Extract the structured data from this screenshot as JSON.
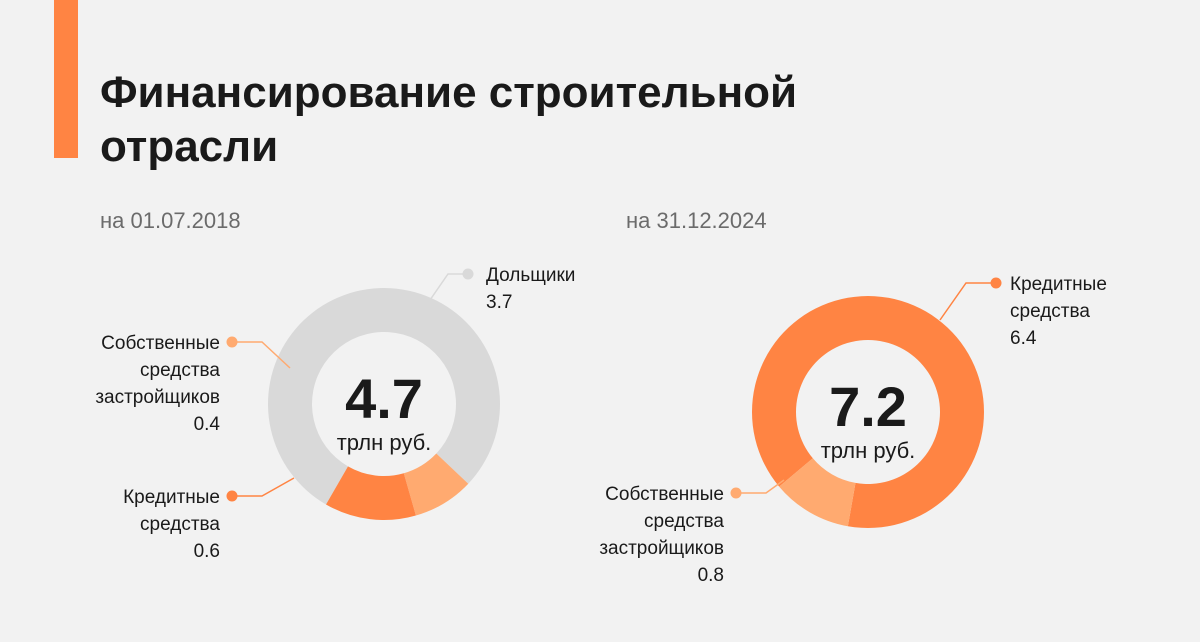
{
  "title": "Финансирование строительной отрасли",
  "title_lines": [
    "Финансирование строительной",
    "отрасли"
  ],
  "colors": {
    "accent": "#ff8443",
    "credit": "#ff8443",
    "own_funds": "#ffaa70",
    "shareholders": "#d9d9d9"
  },
  "chart_data": [
    {
      "type": "pie",
      "subtitle": "на 01.07.2018",
      "total": "4.7",
      "unit": "трлн руб.",
      "slices": [
        {
          "name": "Дольщики",
          "lines": [
            "Дольщики"
          ],
          "value": 3.7,
          "color": "#d9d9d9"
        },
        {
          "name": "Собственные средства застройщиков",
          "lines": [
            "Собственные",
            "средства",
            "застройщиков"
          ],
          "value": 0.4,
          "color": "#ffaa70"
        },
        {
          "name": "Кредитные средства",
          "lines": [
            "Кредитные",
            "средства"
          ],
          "value": 0.6,
          "color": "#ff8443"
        }
      ]
    },
    {
      "type": "pie",
      "subtitle": "на 31.12.2024",
      "total": "7.2",
      "unit": "трлн руб.",
      "slices": [
        {
          "name": "Кредитные средства",
          "lines": [
            "Кредитные",
            "средства"
          ],
          "value": 6.4,
          "color": "#ff8443"
        },
        {
          "name": "Собственные средства застройщиков",
          "lines": [
            "Собственные",
            "средства",
            "застройщиков"
          ],
          "value": 0.8,
          "color": "#ffaa70"
        }
      ]
    }
  ]
}
